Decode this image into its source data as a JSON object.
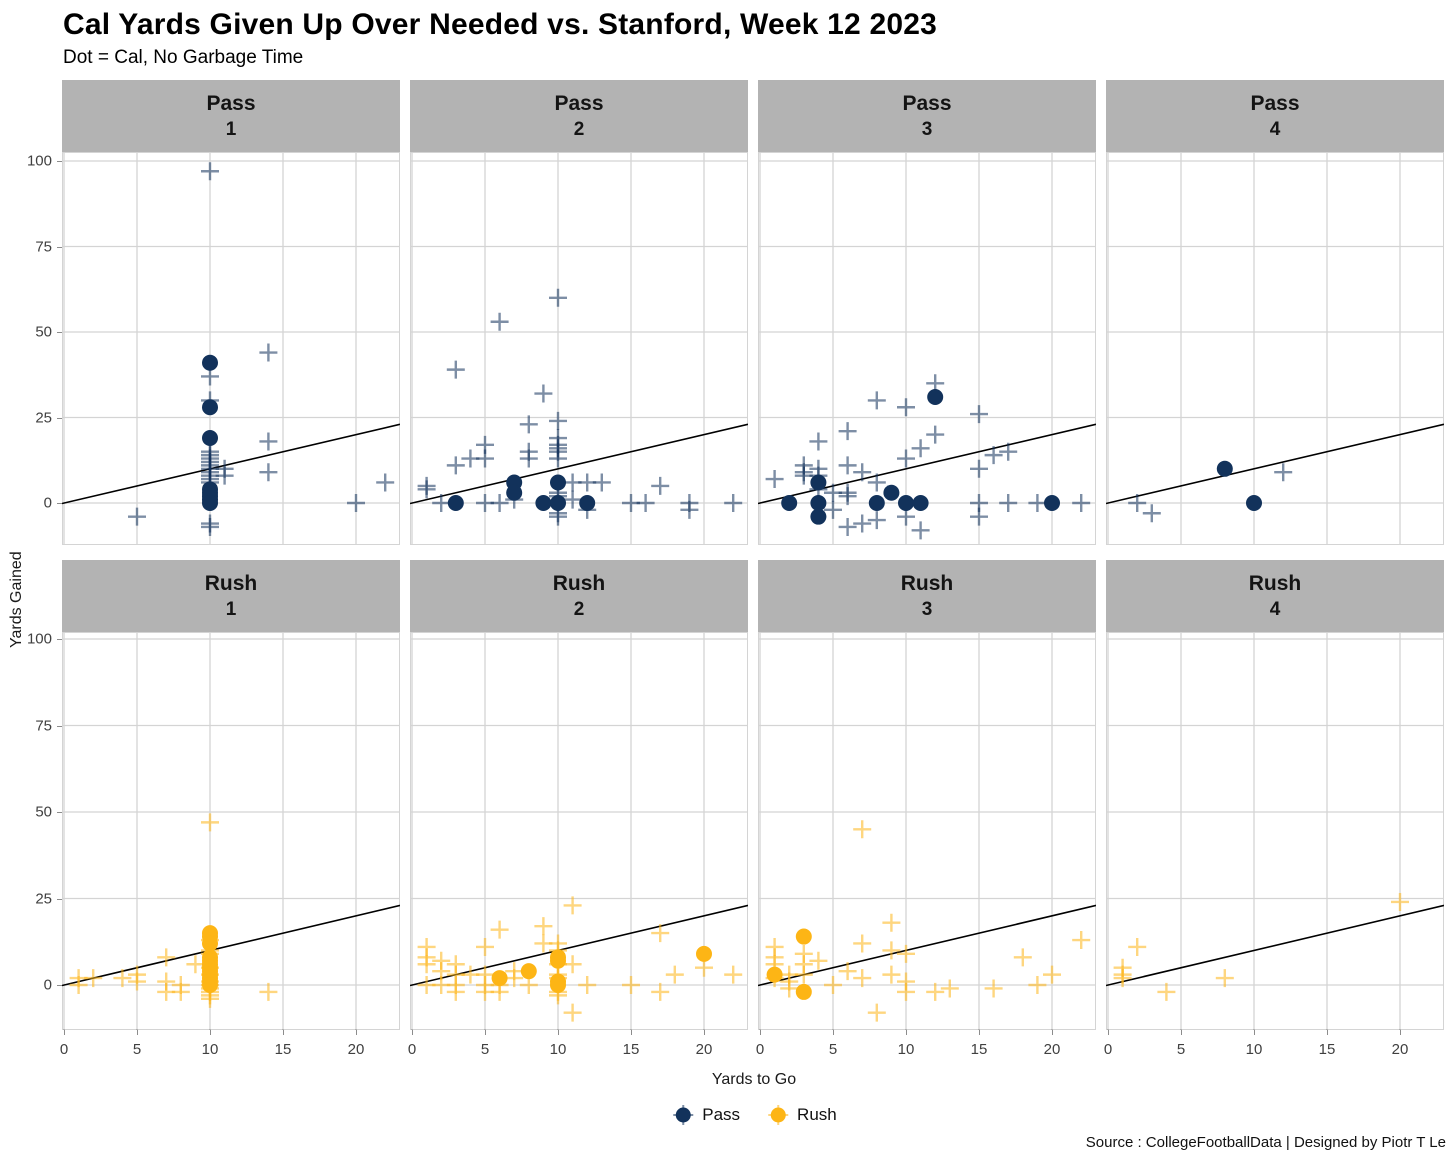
{
  "header": {
    "title": "Cal Yards Given Up Over Needed vs. Stanford, Week 12 2023",
    "subtitle": "Dot = Cal, No Garbage Time"
  },
  "footer": {
    "caption": "Source : CollegeFootballData | Designed by Piotr T Le"
  },
  "legend": [
    {
      "label": "Pass",
      "color": "#12325b"
    },
    {
      "label": "Rush",
      "color": "#fdb515"
    }
  ],
  "colors": {
    "pass_dot": "#12325b",
    "rush_dot": "#fdb515",
    "strip_bg": "#b3b3b3",
    "gridline": "#d4d4d4",
    "reference_line": "#000000"
  },
  "chart_data": {
    "type": "scatter",
    "title": "Cal Yards Given Up Over Needed vs. Stanford, Week 12 2023",
    "subtitle": "Dot = Cal, No Garbage Time",
    "xlabel": "Yards to Go",
    "ylabel": "Yards Gained",
    "x_ticks": [
      0,
      5,
      10,
      15,
      20
    ],
    "y_ticks": [
      0,
      25,
      50,
      75,
      100
    ],
    "xlim": [
      -0.2,
      23
    ],
    "ylim": [
      -12,
      102
    ],
    "grid": true,
    "legend_position": "bottom",
    "reference_line": "y = x diagonal in every facet",
    "marker_meaning": {
      "dot": "Cal",
      "cross": "Stanford"
    },
    "facet_rows": [
      "Pass",
      "Rush"
    ],
    "facet_cols": [
      "1",
      "2",
      "3",
      "4"
    ],
    "facets": [
      {
        "row": "Pass",
        "col": "1",
        "dots": [
          [
            10,
            41
          ],
          [
            10,
            28
          ],
          [
            10,
            19
          ],
          [
            10,
            4
          ],
          [
            10,
            3
          ],
          [
            10,
            2
          ],
          [
            10,
            1
          ],
          [
            10,
            0
          ]
        ],
        "crosses": [
          [
            10,
            97
          ],
          [
            10,
            37
          ],
          [
            10,
            30
          ],
          [
            10,
            15
          ],
          [
            10,
            14
          ],
          [
            10,
            13
          ],
          [
            10,
            12
          ],
          [
            10,
            11
          ],
          [
            10,
            10
          ],
          [
            10,
            9
          ],
          [
            10,
            8
          ],
          [
            10,
            7
          ],
          [
            10,
            6
          ],
          [
            11,
            10
          ],
          [
            11,
            8
          ],
          [
            5,
            -4
          ],
          [
            10,
            -6
          ],
          [
            10,
            -7
          ],
          [
            14,
            44
          ],
          [
            14,
            18
          ],
          [
            14,
            9
          ],
          [
            20,
            0
          ],
          [
            22,
            6
          ]
        ]
      },
      {
        "row": "Pass",
        "col": "2",
        "dots": [
          [
            3,
            0
          ],
          [
            7,
            6
          ],
          [
            7,
            3
          ],
          [
            9,
            0
          ],
          [
            10,
            6
          ],
          [
            10,
            0
          ],
          [
            12,
            0
          ]
        ],
        "crosses": [
          [
            10,
            60
          ],
          [
            6,
            53
          ],
          [
            3,
            39
          ],
          [
            9,
            32
          ],
          [
            8,
            23
          ],
          [
            10,
            24
          ],
          [
            10,
            19
          ],
          [
            10,
            17
          ],
          [
            10,
            16
          ],
          [
            10,
            15
          ],
          [
            10,
            13
          ],
          [
            8,
            15
          ],
          [
            8,
            13
          ],
          [
            5,
            17
          ],
          [
            5,
            13
          ],
          [
            4,
            13
          ],
          [
            3,
            11
          ],
          [
            1,
            5
          ],
          [
            1,
            4
          ],
          [
            2,
            0
          ],
          [
            5,
            0
          ],
          [
            6,
            0
          ],
          [
            7,
            1
          ],
          [
            10,
            3
          ],
          [
            10,
            2
          ],
          [
            11,
            6
          ],
          [
            12,
            6
          ],
          [
            13,
            6
          ],
          [
            11,
            1
          ],
          [
            12,
            -2
          ],
          [
            10,
            -3
          ],
          [
            10,
            -4
          ],
          [
            15,
            0
          ],
          [
            16,
            0
          ],
          [
            17,
            5
          ],
          [
            19,
            0
          ],
          [
            19,
            -2
          ],
          [
            22,
            0
          ]
        ]
      },
      {
        "row": "Pass",
        "col": "3",
        "dots": [
          [
            2,
            0
          ],
          [
            4,
            6
          ],
          [
            4,
            0
          ],
          [
            4,
            -4
          ],
          [
            8,
            0
          ],
          [
            9,
            3
          ],
          [
            10,
            0
          ],
          [
            11,
            0
          ],
          [
            12,
            31
          ],
          [
            20,
            0
          ]
        ],
        "crosses": [
          [
            12,
            35
          ],
          [
            8,
            30
          ],
          [
            10,
            28
          ],
          [
            15,
            26
          ],
          [
            6,
            21
          ],
          [
            12,
            20
          ],
          [
            4,
            18
          ],
          [
            11,
            16
          ],
          [
            17,
            15
          ],
          [
            16,
            14
          ],
          [
            10,
            13
          ],
          [
            3,
            11
          ],
          [
            3,
            9
          ],
          [
            3,
            8
          ],
          [
            4,
            10
          ],
          [
            4,
            8
          ],
          [
            4,
            4
          ],
          [
            1,
            7
          ],
          [
            6,
            11
          ],
          [
            7,
            9
          ],
          [
            8,
            6
          ],
          [
            6,
            3
          ],
          [
            6,
            2
          ],
          [
            5,
            3
          ],
          [
            5,
            -2
          ],
          [
            6,
            -7
          ],
          [
            7,
            -6
          ],
          [
            8,
            -5
          ],
          [
            10,
            -4
          ],
          [
            11,
            -8
          ],
          [
            15,
            10
          ],
          [
            15,
            0
          ],
          [
            15,
            -4
          ],
          [
            17,
            0
          ],
          [
            19,
            0
          ],
          [
            22,
            0
          ]
        ]
      },
      {
        "row": "Pass",
        "col": "4",
        "dots": [
          [
            8,
            10
          ],
          [
            10,
            0
          ]
        ],
        "crosses": [
          [
            2,
            0
          ],
          [
            3,
            -3
          ],
          [
            12,
            9
          ]
        ]
      },
      {
        "row": "Rush",
        "col": "1",
        "dots": [
          [
            10,
            15
          ],
          [
            10,
            14
          ],
          [
            10,
            12
          ],
          [
            10,
            8
          ],
          [
            10,
            7
          ],
          [
            10,
            6
          ],
          [
            10,
            5
          ],
          [
            10,
            4
          ],
          [
            10,
            3
          ],
          [
            10,
            2
          ],
          [
            10,
            1
          ],
          [
            10,
            0
          ]
        ],
        "crosses": [
          [
            10,
            47
          ],
          [
            10,
            13
          ],
          [
            10,
            10
          ],
          [
            10,
            9
          ],
          [
            10,
            5
          ],
          [
            10,
            3
          ],
          [
            10,
            1
          ],
          [
            10,
            0
          ],
          [
            10,
            -1
          ],
          [
            10,
            -2
          ],
          [
            10,
            -3
          ],
          [
            10,
            -4
          ],
          [
            9,
            6
          ],
          [
            7,
            8
          ],
          [
            7,
            1
          ],
          [
            7,
            -2
          ],
          [
            8,
            0
          ],
          [
            8,
            -2
          ],
          [
            1,
            2
          ],
          [
            1,
            0
          ],
          [
            2,
            2
          ],
          [
            4,
            2
          ],
          [
            5,
            3
          ],
          [
            5,
            1
          ],
          [
            14,
            -2
          ]
        ]
      },
      {
        "row": "Rush",
        "col": "2",
        "dots": [
          [
            6,
            2
          ],
          [
            8,
            4
          ],
          [
            10,
            8
          ],
          [
            10,
            7
          ],
          [
            10,
            1
          ],
          [
            10,
            0
          ],
          [
            20,
            9
          ]
        ],
        "crosses": [
          [
            11,
            23
          ],
          [
            6,
            16
          ],
          [
            9,
            17
          ],
          [
            9,
            12
          ],
          [
            10,
            12
          ],
          [
            10,
            10
          ],
          [
            17,
            15
          ],
          [
            5,
            11
          ],
          [
            1,
            11
          ],
          [
            1,
            8
          ],
          [
            1,
            6
          ],
          [
            2,
            7
          ],
          [
            2,
            4
          ],
          [
            3,
            6
          ],
          [
            3,
            3
          ],
          [
            3,
            0
          ],
          [
            3,
            -2
          ],
          [
            4,
            3
          ],
          [
            1,
            0
          ],
          [
            2,
            0
          ],
          [
            5,
            3
          ],
          [
            5,
            0
          ],
          [
            5,
            -2
          ],
          [
            6,
            0
          ],
          [
            6,
            -2
          ],
          [
            7,
            4
          ],
          [
            7,
            2
          ],
          [
            8,
            0
          ],
          [
            10,
            6
          ],
          [
            10,
            3
          ],
          [
            10,
            2
          ],
          [
            10,
            -2
          ],
          [
            10,
            -3
          ],
          [
            11,
            6
          ],
          [
            11,
            -8
          ],
          [
            12,
            0
          ],
          [
            15,
            0
          ],
          [
            17,
            -2
          ],
          [
            18,
            3
          ],
          [
            20,
            5
          ],
          [
            22,
            3
          ]
        ]
      },
      {
        "row": "Rush",
        "col": "3",
        "dots": [
          [
            1,
            3
          ],
          [
            3,
            14
          ],
          [
            3,
            -2
          ]
        ],
        "crosses": [
          [
            7,
            45
          ],
          [
            9,
            18
          ],
          [
            7,
            12
          ],
          [
            22,
            13
          ],
          [
            18,
            8
          ],
          [
            1,
            11
          ],
          [
            1,
            8
          ],
          [
            1,
            6
          ],
          [
            3,
            9
          ],
          [
            3,
            6
          ],
          [
            4,
            7
          ],
          [
            1,
            2
          ],
          [
            2,
            3
          ],
          [
            2,
            1
          ],
          [
            2,
            -1
          ],
          [
            3,
            3
          ],
          [
            6,
            4
          ],
          [
            7,
            2
          ],
          [
            9,
            10
          ],
          [
            9,
            3
          ],
          [
            10,
            9
          ],
          [
            10,
            1
          ],
          [
            10,
            -2
          ],
          [
            12,
            -2
          ],
          [
            13,
            -1
          ],
          [
            16,
            -1
          ],
          [
            19,
            0
          ],
          [
            20,
            3
          ],
          [
            8,
            -8
          ],
          [
            5,
            0
          ]
        ]
      },
      {
        "row": "Rush",
        "col": "4",
        "dots": [],
        "crosses": [
          [
            20,
            24
          ],
          [
            2,
            11
          ],
          [
            1,
            5
          ],
          [
            1,
            3
          ],
          [
            1,
            2
          ],
          [
            8,
            2
          ],
          [
            4,
            -2
          ]
        ]
      }
    ]
  }
}
